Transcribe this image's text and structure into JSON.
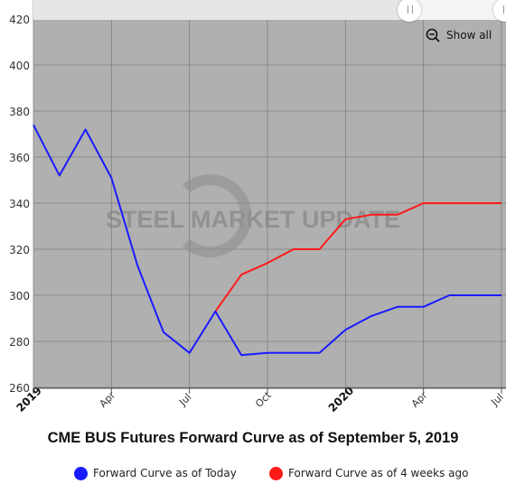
{
  "chart_data": {
    "type": "line",
    "title": "CME BUS Futures Forward Curve as of September 5, 2019",
    "xlabel": "",
    "ylabel": "",
    "x_tick_labels": [
      "2019",
      "Apr",
      "Jul",
      "Oct",
      "2020",
      "Apr",
      "Jul"
    ],
    "x_tick_bold": [
      "2019",
      "2020"
    ],
    "y_tick_labels": [
      "260",
      "280",
      "300",
      "320",
      "340",
      "360",
      "380",
      "400",
      "420"
    ],
    "ylim": [
      260,
      420
    ],
    "x_range": [
      "2019-01",
      "2020-07"
    ],
    "grid": true,
    "legend_position": "bottom",
    "series": [
      {
        "name": "Forward Curve as of Today",
        "color": "#1a1aff",
        "x": [
          "2019-01",
          "2019-02",
          "2019-03",
          "2019-04",
          "2019-05",
          "2019-06",
          "2019-07",
          "2019-08",
          "2019-09",
          "2019-10",
          "2019-11",
          "2019-12",
          "2020-01",
          "2020-02",
          "2020-03",
          "2020-04",
          "2020-05",
          "2020-06",
          "2020-07"
        ],
        "values": [
          374,
          352,
          372,
          351,
          313,
          284,
          275,
          293,
          274,
          275,
          275,
          275,
          285,
          291,
          295,
          295,
          300,
          300,
          300
        ]
      },
      {
        "name": "Forward Curve as of 4 weeks ago",
        "color": "#ff1a1a",
        "x": [
          "2019-08",
          "2019-09",
          "2019-10",
          "2019-11",
          "2019-12",
          "2020-01",
          "2020-02",
          "2020-03",
          "2020-04",
          "2020-05",
          "2020-06",
          "2020-07"
        ],
        "values": [
          293,
          309,
          314,
          320,
          320,
          333,
          335,
          335,
          340,
          340,
          340,
          340
        ]
      }
    ],
    "watermark": "STEEL MARKET UPDATE"
  },
  "navigator": {
    "show_all_label": "Show all",
    "zoom_icon": "zoom-out-icon"
  },
  "colors": {
    "plot_background": "#b0b0b0",
    "grid": "#808080"
  }
}
